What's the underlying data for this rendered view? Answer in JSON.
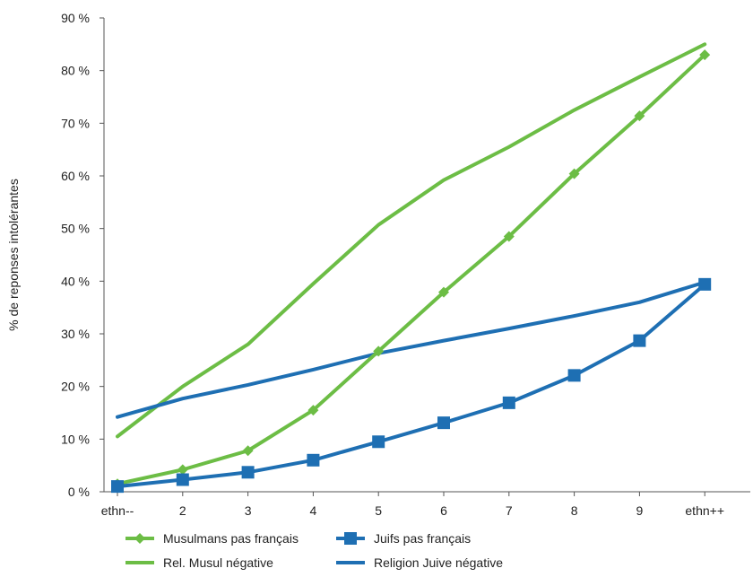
{
  "chart_data": {
    "type": "line",
    "categories": [
      "ethn--",
      "2",
      "3",
      "4",
      "5",
      "6",
      "7",
      "8",
      "9",
      "ethn++"
    ],
    "ylabel": "% de reponses intolérantes",
    "ylim": [
      0,
      90
    ],
    "yticks": [
      0,
      10,
      20,
      30,
      40,
      50,
      60,
      70,
      80,
      90
    ],
    "ytick_suffix": " %",
    "grid": false,
    "legend_position": "bottom",
    "series": [
      {
        "name": "Musulmans pas français",
        "color": "#6cbd45",
        "marker": "diamond",
        "values": [
          1.5,
          4.2,
          7.8,
          15.5,
          26.7,
          37.9,
          48.5,
          60.4,
          71.4,
          83.0
        ]
      },
      {
        "name": "Rel. Musul négative",
        "color": "#6cbd45",
        "marker": "none",
        "values": [
          10.5,
          20.0,
          28.0,
          39.5,
          50.7,
          59.2,
          65.5,
          72.5,
          78.8,
          85.0
        ]
      },
      {
        "name": "Juifs pas français",
        "color": "#1e6fb3",
        "marker": "square",
        "values": [
          1.0,
          2.3,
          3.7,
          6.0,
          9.5,
          13.1,
          16.9,
          22.1,
          28.7,
          39.4
        ]
      },
      {
        "name": "Religion Juive négative",
        "color": "#1e6fb3",
        "marker": "none",
        "values": [
          14.2,
          17.7,
          20.3,
          23.2,
          26.3,
          28.7,
          31.0,
          33.4,
          36.0,
          39.8
        ]
      }
    ]
  }
}
